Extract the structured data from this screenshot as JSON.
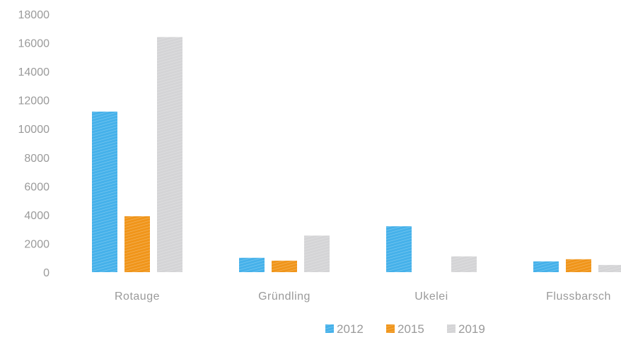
{
  "chart_data": {
    "type": "bar",
    "title": "",
    "xlabel": "",
    "ylabel": "",
    "categories": [
      "Rotauge",
      "Gründling",
      "Ukelei",
      "Flussbarsch"
    ],
    "series": [
      {
        "name": "2012",
        "color": "#45b1ea",
        "values": [
          11200,
          1000,
          3200,
          750
        ]
      },
      {
        "name": "2015",
        "color": "#f0951a",
        "values": [
          3900,
          800,
          0,
          900
        ]
      },
      {
        "name": "2019",
        "color": "#d4d4d6",
        "values": [
          16400,
          2550,
          1100,
          500
        ]
      }
    ],
    "ylim": [
      0,
      18000
    ],
    "yticks": [
      0,
      2000,
      4000,
      6000,
      8000,
      10000,
      12000,
      14000,
      16000,
      18000
    ],
    "grid": false,
    "legend": "bottom",
    "bar_style": "hatched"
  }
}
